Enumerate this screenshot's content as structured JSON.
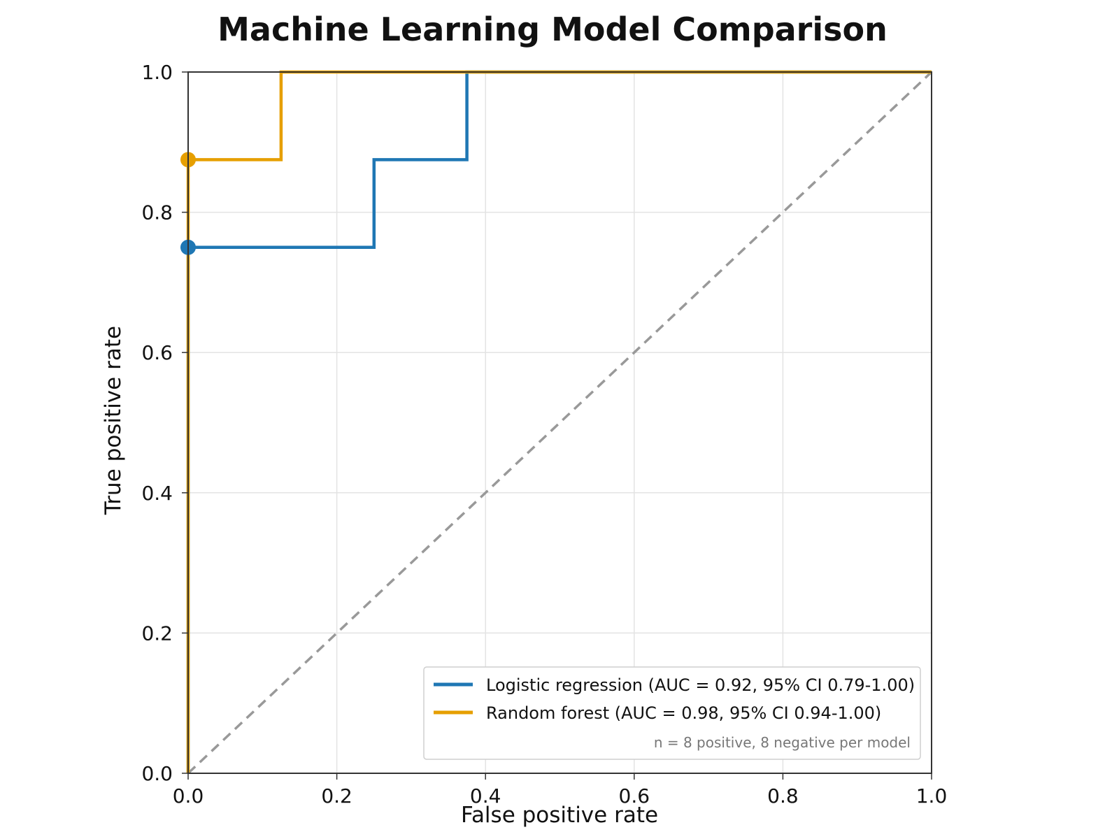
{
  "chart_data": {
    "type": "line",
    "title": "Machine Learning Model Comparison",
    "xlabel": "False positive rate",
    "ylabel": "True positive rate",
    "xlim": [
      0,
      1
    ],
    "ylim": [
      0,
      1
    ],
    "x_ticks": [
      "0.0",
      "0.2",
      "0.4",
      "0.6",
      "0.8",
      "1.0"
    ],
    "y_ticks": [
      "0.0",
      "0.2",
      "0.4",
      "0.6",
      "0.8",
      "1.0"
    ],
    "grid": true,
    "legend_position": "lower-right",
    "series": [
      {
        "name": "Logistic regression (AUC = 0.92, 95% CI 0.79-1.00)",
        "color": "#1f77b4",
        "x": [
          0.0,
          0.0,
          0.25,
          0.25,
          0.375,
          0.375,
          1.0
        ],
        "y": [
          0.0,
          0.75,
          0.75,
          0.875,
          0.875,
          1.0,
          1.0
        ],
        "marker": {
          "x": 0.0,
          "y": 0.75
        }
      },
      {
        "name": "Random forest (AUC = 0.98, 95% CI 0.94-1.00)",
        "color": "#e69f00",
        "x": [
          0.0,
          0.0,
          0.125,
          0.125,
          1.0
        ],
        "y": [
          0.0,
          0.875,
          0.875,
          1.0,
          1.0
        ],
        "marker": {
          "x": 0.0,
          "y": 0.875
        }
      }
    ],
    "reference_line": {
      "x": [
        0,
        1
      ],
      "y": [
        0,
        1
      ],
      "color": "#999999"
    },
    "legend_note": "n = 8 positive, 8 negative per model"
  }
}
